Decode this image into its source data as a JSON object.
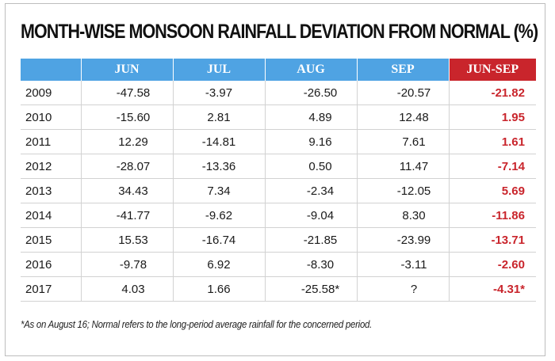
{
  "chart_data": {
    "type": "table",
    "title": "MONTH-WISE MONSOON RAINFALL DEVIATION FROM NORMAL (%)",
    "columns": [
      "",
      "JUN",
      "JUL",
      "AUG",
      "SEP",
      "JUN-SEP"
    ],
    "rows": [
      {
        "year": "2009",
        "values": [
          "-47.58",
          "-3.97",
          "-26.50",
          "-20.57"
        ],
        "total": "-21.82"
      },
      {
        "year": "2010",
        "values": [
          "-15.60",
          "2.81",
          "4.89",
          "12.48"
        ],
        "total": "1.95"
      },
      {
        "year": "2011",
        "values": [
          "12.29",
          "-14.81",
          "9.16",
          "7.61"
        ],
        "total": "1.61"
      },
      {
        "year": "2012",
        "values": [
          "-28.07",
          "-13.36",
          "0.50",
          "11.47"
        ],
        "total": "-7.14"
      },
      {
        "year": "2013",
        "values": [
          "34.43",
          "7.34",
          "-2.34",
          "-12.05"
        ],
        "total": "5.69"
      },
      {
        "year": "2014",
        "values": [
          "-41.77",
          "-9.62",
          "-9.04",
          "8.30"
        ],
        "total": "-11.86"
      },
      {
        "year": "2015",
        "values": [
          "15.53",
          "-16.74",
          "-21.85",
          "-23.99"
        ],
        "total": "-13.71"
      },
      {
        "year": "2016",
        "values": [
          "-9.78",
          "6.92",
          "-8.30",
          "-3.11"
        ],
        "total": "-2.60"
      },
      {
        "year": "2017",
        "values": [
          "4.03",
          "1.66",
          "-25.58*",
          "?"
        ],
        "total": "-4.31*"
      }
    ],
    "footnote": "*As on August 16; Normal refers to the long-period average rainfall for the concerned period."
  },
  "colors": {
    "header_blue": "#4fa3e3",
    "header_red": "#c9252c",
    "total_text": "#c9252c"
  }
}
